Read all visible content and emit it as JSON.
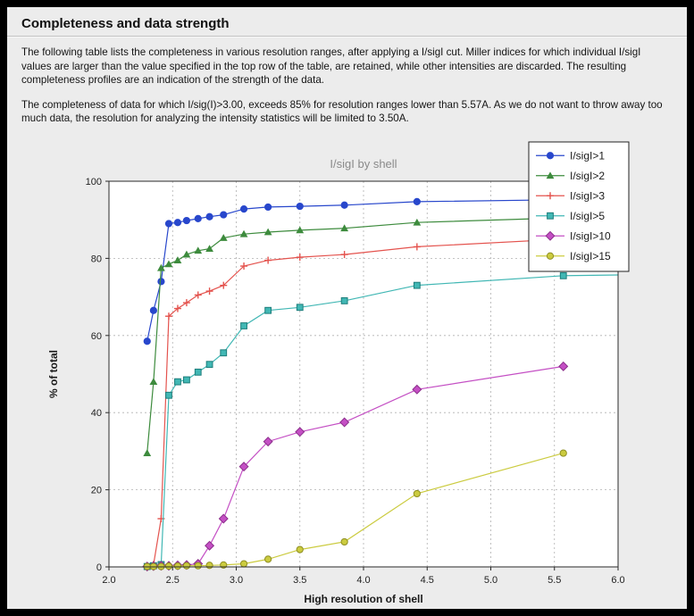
{
  "page": {
    "title": "Completeness and data strength",
    "paragraph1": "The following table lists the completeness in various resolution ranges, after applying a I/sigI cut. Miller indices for which individual I/sigI values are larger than the value specified in the top row of the table, are retained, while other intensities are discarded. The resulting completeness profiles are an indication of the strength of the data.",
    "paragraph2": "The completeness of data for which I/sig(I)>3.00, exceeds  85% for resolution ranges lower than 5.57A. As we do not want to throw away too much data, the resolution for analyzing the intensity statistics will be limited to 3.50A."
  },
  "chart_data": {
    "type": "line",
    "title": "I/sigI by shell",
    "xlabel": "High resolution of shell",
    "ylabel": "% of total",
    "xlim": [
      2.0,
      6.0
    ],
    "ylim": [
      0,
      100
    ],
    "xticks": [
      2.0,
      2.5,
      3.0,
      3.5,
      4.0,
      4.5,
      5.0,
      5.5,
      6.0
    ],
    "yticks": [
      0,
      20,
      40,
      60,
      80,
      100
    ],
    "grid": "dashed",
    "legend_position": "upper-right-overlapping-plot",
    "plot_bg": "#ffffff",
    "figure_bg": "#ececec",
    "grid_color": "#b0b0b0",
    "frame_color": "#2a2a2a",
    "title_color": "#8a8a8a",
    "tick_color": "#222222",
    "x": [
      2.3,
      2.35,
      2.41,
      2.47,
      2.54,
      2.61,
      2.7,
      2.79,
      2.9,
      3.06,
      3.25,
      3.5,
      3.85,
      4.42,
      5.57
    ],
    "series": [
      {
        "name": "I/sigI>1",
        "color": "#2847cc",
        "marker": "circle",
        "values": [
          58.5,
          66.5,
          74.0,
          89.0,
          89.3,
          89.8,
          90.3,
          90.8,
          91.3,
          92.8,
          93.3,
          93.5,
          93.8,
          94.7,
          95.2
        ],
        "edge_y": 95.4
      },
      {
        "name": "I/sigI>2",
        "color": "#3d8b3d",
        "marker": "triangle",
        "values": [
          29.5,
          48.0,
          77.5,
          78.5,
          79.5,
          81.0,
          82.0,
          82.5,
          85.3,
          86.3,
          86.8,
          87.3,
          87.8,
          89.3,
          90.5
        ],
        "edge_y": 90.8
      },
      {
        "name": "I/sigI>3",
        "color": "#e4534e",
        "marker": "plus",
        "values": [
          0.2,
          0.6,
          12.5,
          65.0,
          67.0,
          68.5,
          70.5,
          71.5,
          73.0,
          78.0,
          79.5,
          80.3,
          81.0,
          83.0,
          85.0
        ],
        "edge_y": 85.4
      },
      {
        "name": "I/sigI>5",
        "color": "#41b7b4",
        "marker_edge": "#1d7d7b",
        "marker": "square",
        "values": [
          0.1,
          0.3,
          0.6,
          44.5,
          48.0,
          48.5,
          50.5,
          52.5,
          55.5,
          62.5,
          66.5,
          67.3,
          69.0,
          73.0,
          75.5
        ],
        "edge_y": 75.7
      },
      {
        "name": "I/sigI>10",
        "color": "#c44fc4",
        "marker_edge": "#8b2e8b",
        "marker": "diamond",
        "values": [
          0.1,
          0.2,
          0.3,
          0.3,
          0.4,
          0.5,
          0.8,
          5.5,
          12.5,
          26.0,
          32.5,
          35.0,
          37.5,
          46.0,
          52.0
        ]
      },
      {
        "name": "I/sigI>15",
        "color": "#cbcb3f",
        "marker_edge": "#8f8f23",
        "marker": "circle",
        "values": [
          0.1,
          0.1,
          0.1,
          0.2,
          0.2,
          0.3,
          0.3,
          0.4,
          0.5,
          0.8,
          2.0,
          4.5,
          6.5,
          19.0,
          29.5
        ]
      }
    ]
  }
}
